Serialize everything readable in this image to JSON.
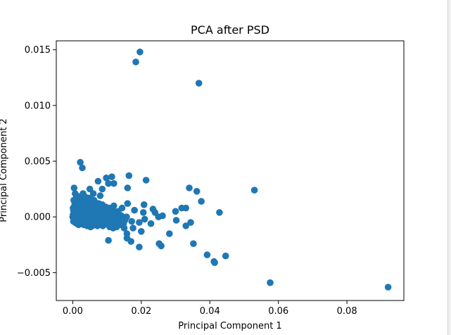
{
  "chart_data": {
    "type": "scatter",
    "title": "PCA after PSD",
    "xlabel": "Principal Component 1",
    "ylabel": "Principal Component 2",
    "xlim": [
      -0.0048,
      0.0966
    ],
    "ylim": [
      -0.0075,
      0.0158
    ],
    "xticks": [
      0.0,
      0.02,
      0.04,
      0.06,
      0.08
    ],
    "xtick_labels": [
      "0.00",
      "0.02",
      "0.04",
      "0.06",
      "0.08"
    ],
    "yticks": [
      -0.005,
      0.0,
      0.005,
      0.01,
      0.015
    ],
    "ytick_labels": [
      "−0.005",
      "0.000",
      "0.005",
      "0.010",
      "0.015"
    ],
    "grid": false,
    "color": "#1f77b4",
    "series": [
      {
        "points": [
          [
            0.0196,
            0.0148
          ],
          [
            0.0184,
            0.0139
          ],
          [
            0.0368,
            0.012
          ],
          [
            0.0022,
            0.0049
          ],
          [
            0.0028,
            0.0044
          ],
          [
            0.0098,
            0.0035
          ],
          [
            0.0114,
            0.0036
          ],
          [
            0.0164,
            0.0037
          ],
          [
            0.0074,
            0.0032
          ],
          [
            0.0104,
            0.003
          ],
          [
            0.012,
            0.003
          ],
          [
            0.0214,
            0.0033
          ],
          [
            0.0004,
            0.0026
          ],
          [
            0.005,
            0.0025
          ],
          [
            0.0086,
            0.0025
          ],
          [
            0.016,
            0.0026
          ],
          [
            0.034,
            0.0026
          ],
          [
            0.0362,
            0.0023
          ],
          [
            0.053,
            0.0024
          ],
          [
            0.003,
            0.0021
          ],
          [
            0.006,
            0.0021
          ],
          [
            0.008,
            0.0019
          ],
          [
            0.0375,
            0.0014
          ],
          [
            0.016,
            0.0012
          ],
          [
            0.0208,
            0.0011
          ],
          [
            0.012,
            0.001
          ],
          [
            0.0318,
            0.0008
          ],
          [
            0.033,
            0.0008
          ],
          [
            0.0234,
            0.0007
          ],
          [
            0.03,
            0.0005
          ],
          [
            0.0428,
            0.0004
          ],
          [
            0.024,
            0.0004
          ],
          [
            0.0206,
            0.0004
          ],
          [
            0.018,
            0.0006
          ],
          [
            0.0144,
            0.0008
          ],
          [
            0.0132,
            0.0005
          ],
          [
            0.025,
            0.0
          ],
          [
            0.0262,
            0.0001
          ],
          [
            0.021,
            -0.0002
          ],
          [
            0.0228,
            -0.0006
          ],
          [
            0.0194,
            -0.0005
          ],
          [
            0.0172,
            -0.0004
          ],
          [
            0.0302,
            -0.0003
          ],
          [
            0.0344,
            -0.0005
          ],
          [
            0.033,
            -0.0008
          ],
          [
            0.0282,
            -0.0015
          ],
          [
            0.02,
            -0.0013
          ],
          [
            0.0176,
            -0.001
          ],
          [
            0.0158,
            -0.0015
          ],
          [
            0.015,
            -0.001
          ],
          [
            0.017,
            -0.0022
          ],
          [
            0.0158,
            -0.0019
          ],
          [
            0.0194,
            -0.0027
          ],
          [
            0.0104,
            -0.0021
          ],
          [
            0.0252,
            -0.0024
          ],
          [
            0.0258,
            -0.0026
          ],
          [
            0.0352,
            -0.0024
          ],
          [
            0.0392,
            -0.0034
          ],
          [
            0.0412,
            -0.004
          ],
          [
            0.0414,
            -0.0041
          ],
          [
            0.0446,
            -0.0035
          ],
          [
            0.0576,
            -0.0059
          ],
          [
            0.092,
            -0.0063
          ],
          [
            0.0006,
            0.0012
          ],
          [
            0.0012,
            0.001
          ],
          [
            0.002,
            0.0014
          ],
          [
            0.003,
            0.0015
          ],
          [
            0.004,
            0.0012
          ],
          [
            0.005,
            0.0011
          ],
          [
            0.006,
            0.001
          ],
          [
            0.007,
            0.0009
          ],
          [
            0.008,
            0.0008
          ],
          [
            0.009,
            0.0007
          ],
          [
            0.01,
            0.0006
          ],
          [
            0.011,
            0.0005
          ],
          [
            0.0005,
            0.0005
          ],
          [
            0.001,
            0.0003
          ],
          [
            0.0015,
            0.0002
          ],
          [
            0.002,
            0.0004
          ],
          [
            0.0025,
            0.0006
          ],
          [
            0.0035,
            0.0005
          ],
          [
            0.0045,
            0.0004
          ],
          [
            0.0055,
            0.0003
          ],
          [
            0.0065,
            0.0002
          ],
          [
            0.0075,
            0.0001
          ],
          [
            0.0085,
            0.0
          ],
          [
            0.0095,
            -0.0001
          ],
          [
            0.0105,
            -0.0002
          ],
          [
            0.0115,
            -0.0003
          ],
          [
            0.0125,
            -0.0004
          ],
          [
            0.0135,
            -0.0005
          ],
          [
            0.0,
            0.0
          ],
          [
            0.0003,
            -0.0001
          ],
          [
            0.0008,
            -0.0002
          ],
          [
            0.0013,
            -0.0003
          ],
          [
            0.0018,
            -0.0004
          ],
          [
            0.0023,
            -0.0002
          ],
          [
            0.0028,
            -0.0001
          ],
          [
            0.0033,
            0.0
          ],
          [
            0.0038,
            0.0001
          ],
          [
            0.0043,
            0.0002
          ],
          [
            0.0048,
            0.0001
          ],
          [
            0.0053,
            0.0
          ],
          [
            0.0058,
            -0.0001
          ],
          [
            0.0063,
            -0.0003
          ],
          [
            0.0068,
            -0.0004
          ],
          [
            0.0073,
            -0.0005
          ],
          [
            0.0078,
            -0.0006
          ],
          [
            0.0083,
            -0.0007
          ],
          [
            0.0088,
            -0.0008
          ],
          [
            0.0093,
            -0.0006
          ],
          [
            0.0098,
            -0.0005
          ],
          [
            0.0103,
            -0.0007
          ],
          [
            0.0108,
            -0.0009
          ],
          [
            0.0113,
            -0.0008
          ],
          [
            0.0118,
            -0.001
          ],
          [
            0.0128,
            -0.0009
          ],
          [
            0.0138,
            -0.0007
          ],
          [
            0.0148,
            -0.0006
          ],
          [
            0.0001,
            0.0008
          ],
          [
            0.0004,
            0.0009
          ],
          [
            0.0009,
            0.0007
          ],
          [
            0.0014,
            0.0008
          ],
          [
            0.0019,
            0.0009
          ],
          [
            0.0024,
            0.001
          ],
          [
            0.0029,
            0.0008
          ],
          [
            0.0034,
            0.0009
          ],
          [
            0.0039,
            0.0007
          ],
          [
            0.0044,
            0.0008
          ],
          [
            0.0049,
            0.0006
          ],
          [
            0.0054,
            0.0007
          ],
          [
            0.0059,
            0.0005
          ],
          [
            0.0064,
            0.0006
          ],
          [
            0.0069,
            0.0004
          ],
          [
            0.0074,
            0.0005
          ],
          [
            0.0002,
            -0.0004
          ],
          [
            0.0007,
            -0.0005
          ],
          [
            0.0012,
            -0.0006
          ],
          [
            0.0017,
            -0.0007
          ],
          [
            0.0022,
            -0.0006
          ],
          [
            0.0027,
            -0.0005
          ],
          [
            0.0032,
            -0.0007
          ],
          [
            0.0037,
            -0.0006
          ],
          [
            0.0042,
            -0.0008
          ],
          [
            0.0047,
            -0.0007
          ],
          [
            0.0052,
            -0.0009
          ],
          [
            0.0057,
            -0.0008
          ],
          [
            0.0062,
            -0.0006
          ],
          [
            0.0067,
            -0.0007
          ],
          [
            0.0072,
            -0.0008
          ],
          [
            0.0077,
            -0.0004
          ],
          [
            0.0082,
            -0.0003
          ],
          [
            0.0087,
            -0.0002
          ],
          [
            0.0092,
            -0.0003
          ],
          [
            0.0097,
            -0.0004
          ],
          [
            0.0102,
            0.0002
          ],
          [
            0.0107,
            0.0001
          ],
          [
            0.0112,
            0.0002
          ],
          [
            0.0117,
            0.0003
          ],
          [
            0.0122,
            0.0001
          ],
          [
            0.0127,
            0.0
          ],
          [
            0.0132,
            -0.0001
          ],
          [
            0.0137,
            0.0002
          ],
          [
            0.0142,
            0.0001
          ],
          [
            0.0147,
            -0.0002
          ],
          [
            0.0152,
            -0.0003
          ],
          [
            0.0157,
            0.0
          ],
          [
            0.001,
            0.0017
          ],
          [
            0.0016,
            0.0018
          ],
          [
            0.0026,
            0.0016
          ],
          [
            0.0036,
            0.0018
          ],
          [
            0.0046,
            0.0017
          ],
          [
            0.0056,
            0.0014
          ],
          [
            0.0066,
            0.0013
          ],
          [
            0.0076,
            0.0012
          ],
          [
            0.0086,
            0.0011
          ],
          [
            0.0096,
            0.0009
          ],
          [
            0.0106,
            0.0008
          ],
          [
            0.0116,
            0.0007
          ],
          [
            0.0001,
            0.0002
          ],
          [
            0.0002,
            0.0006
          ],
          [
            0.0003,
            0.0003
          ],
          [
            0.0006,
            0.0001
          ],
          [
            0.0011,
            0.0
          ],
          [
            0.0016,
            0.0001
          ],
          [
            0.0021,
            -0.0001
          ],
          [
            0.0026,
            0.0002
          ],
          [
            0.0031,
            0.0003
          ],
          [
            0.0041,
            -0.0003
          ],
          [
            0.0051,
            -0.0004
          ],
          [
            0.0061,
            -0.0005
          ],
          [
            0.0071,
            0.0003
          ],
          [
            0.0081,
            0.0004
          ],
          [
            0.0091,
            0.0002
          ],
          [
            0.0101,
            0.0004
          ],
          [
            0.0003,
            0.0015
          ],
          [
            0.0007,
            0.0021
          ],
          [
            0.0012,
            0.0019
          ],
          [
            0.0017,
            0.0013
          ],
          [
            0.0042,
            0.0014
          ],
          [
            0.0052,
            0.0016
          ],
          [
            0.0062,
            0.0015
          ],
          [
            0.0072,
            0.0011
          ],
          [
            0.0004,
            -0.0001
          ],
          [
            0.0009,
            0.0002
          ],
          [
            0.0014,
            0.0005
          ],
          [
            0.0019,
            0.0006
          ],
          [
            0.0024,
            0.0003
          ],
          [
            0.0029,
            0.0004
          ],
          [
            0.0034,
            0.0002
          ],
          [
            0.0039,
            0.0004
          ]
        ]
      }
    ]
  }
}
